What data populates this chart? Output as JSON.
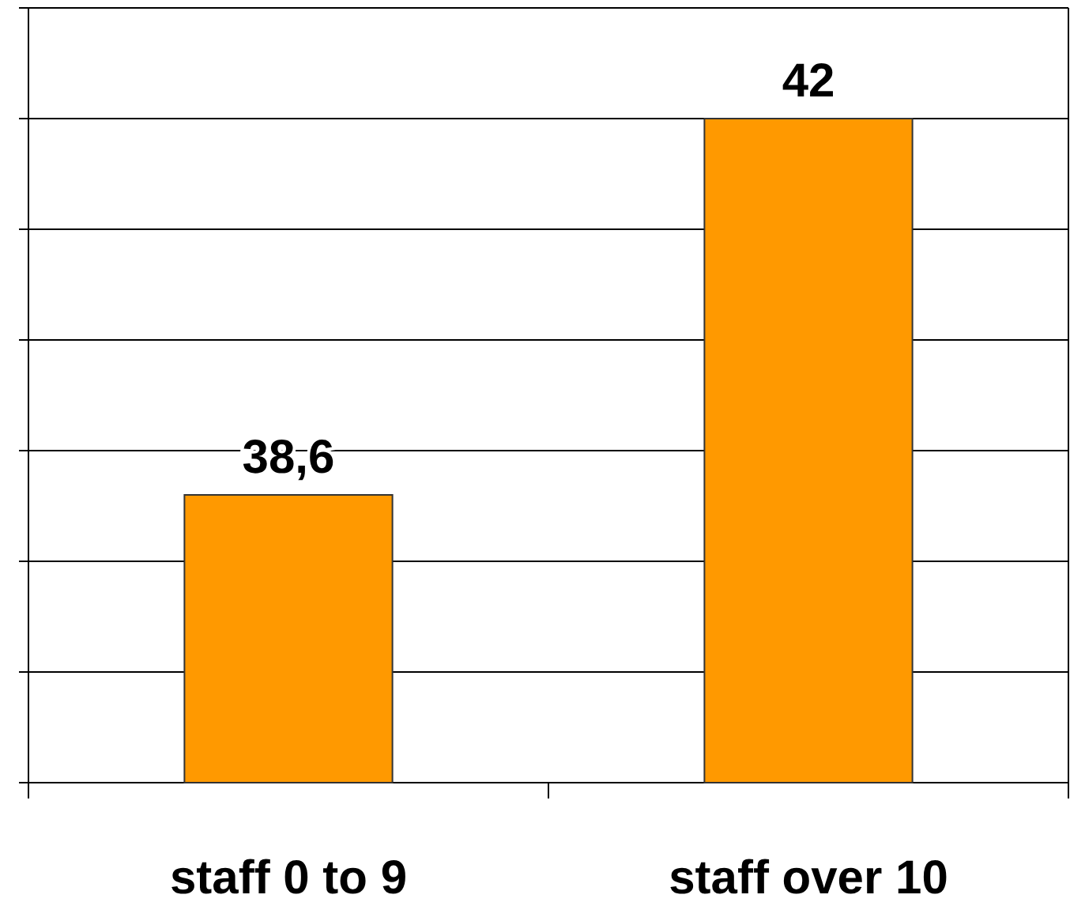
{
  "chart_data": {
    "type": "bar",
    "categories": [
      "staff 0 to 9",
      "staff over 10"
    ],
    "values": [
      38.6,
      42
    ],
    "value_labels": [
      "38,6",
      "42"
    ],
    "color": "#ff9900",
    "ylim": [
      36,
      43
    ],
    "yticks": [
      {
        "value": 36,
        "label": null
      },
      {
        "value": 37,
        "label": null
      },
      {
        "value": 38,
        "label": null
      },
      {
        "value": 39,
        "label": null
      },
      {
        "value": 40,
        "label": null
      },
      {
        "value": 41,
        "label": null
      },
      {
        "value": 42,
        "label": null
      },
      {
        "value": 43,
        "label": null
      }
    ],
    "grid": true
  }
}
